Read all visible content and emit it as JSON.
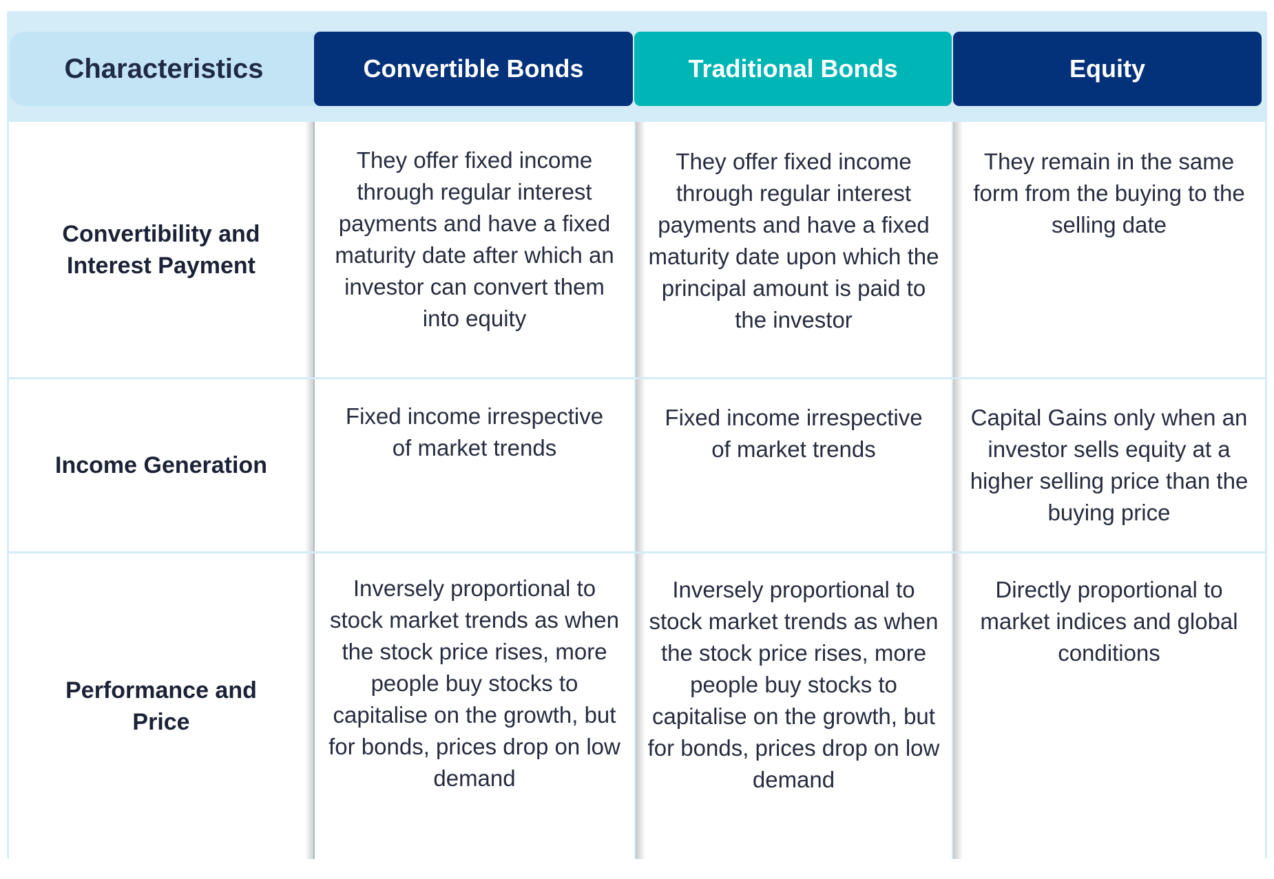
{
  "header": {
    "characteristics": "Characteristics",
    "convertible": "Convertible Bonds",
    "traditional": "Traditional Bonds",
    "equity": "Equity"
  },
  "rows": [
    {
      "label": "Convertibility and Interest Payment",
      "convertible": "They offer fixed income through regular interest payments and have a fixed maturity date after which an investor can convert them into equity",
      "traditional": "They offer fixed income through regular interest payments and have a fixed maturity date upon which the principal amount is paid to the investor",
      "equity": "They remain in the same form from the buying to the selling date"
    },
    {
      "label": "Income Generation",
      "convertible": "Fixed income irrespective of market trends",
      "traditional": "Fixed income irrespective of market trends",
      "equity": "Capital Gains only when an investor sells equity at a higher selling price than the buying price"
    },
    {
      "label": "Performance and Price",
      "convertible": "Inversely proportional to stock market trends as when the stock price rises, more people buy stocks to capitalise on the growth, but for bonds, prices drop on low demand",
      "traditional": "Inversely proportional to stock market trends as when the stock price rises, more people buy stocks to capitalise on the growth, but for bonds, prices drop on low demand",
      "equity": "Directly proportional to market indices and global conditions"
    }
  ],
  "colors": {
    "navy": "#03327a",
    "teal": "#00b5b5",
    "light_blue": "#c2e4f5",
    "frame": "#d4ecf8"
  }
}
